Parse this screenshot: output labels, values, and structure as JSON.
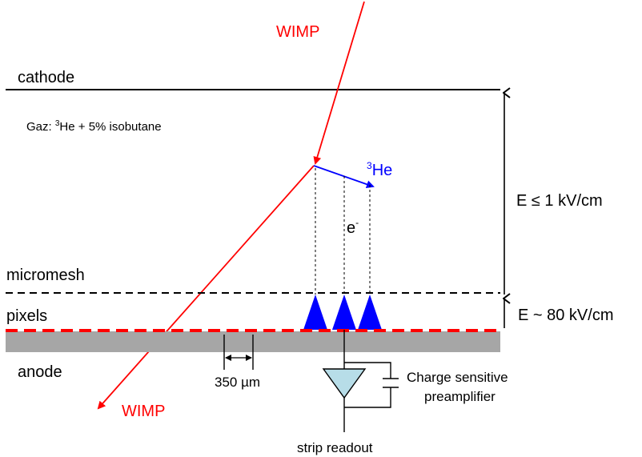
{
  "labels": {
    "wimp_in": "WIMP",
    "wimp_out": "WIMP",
    "cathode": "cathode",
    "gas": "Gaz: ",
    "gas_sup": "3",
    "gas_rest": "He + 5% isobutane",
    "he3_sup": "3",
    "he3": "He",
    "electron": "e",
    "electron_sup": "-",
    "field_drift": "E ≤ 1 kV/cm",
    "micromesh": "micromesh",
    "pixels": "pixels",
    "field_amp": "E ~ 80 kV/cm",
    "anode": "anode",
    "pitch": "350 µm",
    "preamp_line1": "Charge sensitive",
    "preamp_line2": "preamplifier",
    "strip_readout": "strip readout"
  },
  "colors": {
    "wimp": "#ff0000",
    "recoil": "#0000ff",
    "pixel_triangles": "#0000ff",
    "anode_plate": "#a6a6a6",
    "pixel_line": "#ff0000",
    "preamp_fill": "#b7dde8"
  }
}
